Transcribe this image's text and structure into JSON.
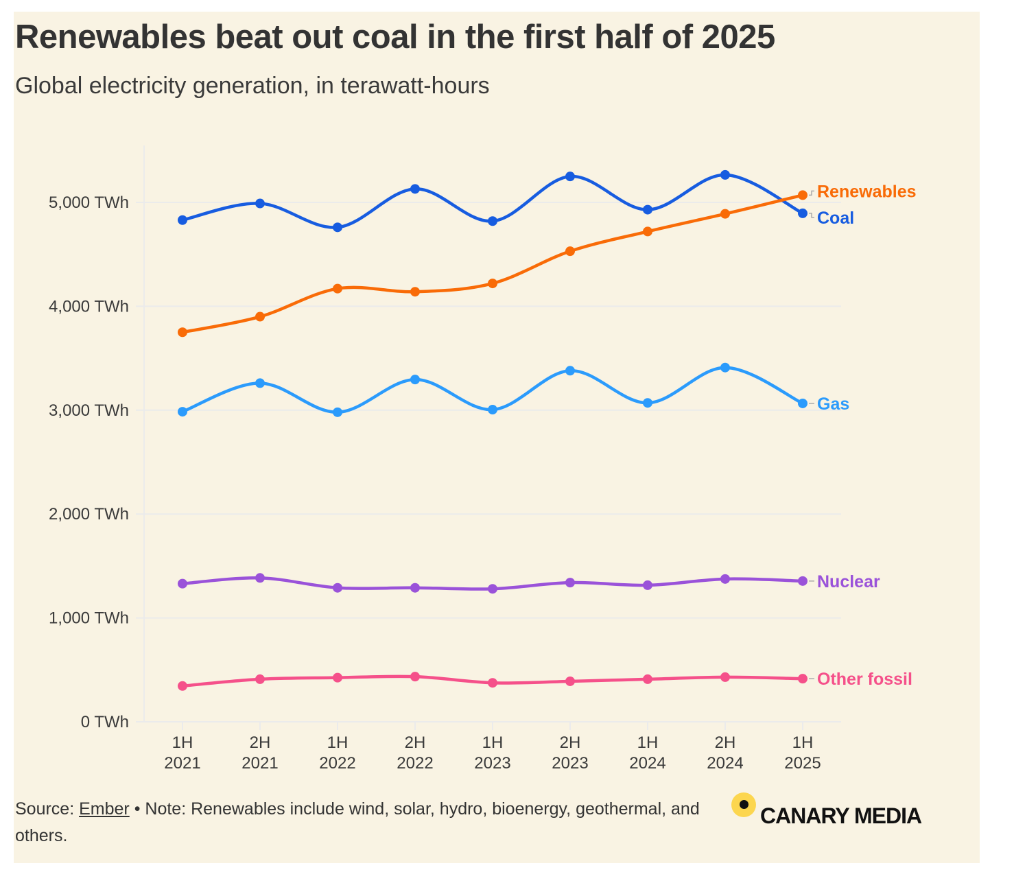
{
  "header": {
    "title": "Renewables beat out coal in the first half of 2025",
    "subtitle": "Global electricity generation, in terawatt-hours"
  },
  "footer": {
    "source_prefix": "Source: ",
    "source_link": "Ember",
    "note": " • Note: Renewables include wind, solar, hydro, bioenergy, geothermal, and others."
  },
  "logo": {
    "text": "CANARY MEDIA",
    "icon": "canary-dot-icon",
    "accent": "#fcd64f"
  },
  "chart_data": {
    "type": "line",
    "title": "Renewables beat out coal in the first half of 2025",
    "subtitle": "Global electricity generation, in terawatt-hours",
    "xlabel": "",
    "ylabel": "",
    "x": [
      "1H 2021",
      "2H 2021",
      "1H 2022",
      "2H 2022",
      "1H 2023",
      "2H 2023",
      "1H 2024",
      "2H 2024",
      "1H 2025"
    ],
    "x_tick_labels": [
      [
        "1H",
        "2021"
      ],
      [
        "2H",
        "2021"
      ],
      [
        "1H",
        "2022"
      ],
      [
        "2H",
        "2022"
      ],
      [
        "1H",
        "2023"
      ],
      [
        "2H",
        "2023"
      ],
      [
        "1H",
        "2024"
      ],
      [
        "2H",
        "2024"
      ],
      [
        "1H",
        "2025"
      ]
    ],
    "y_ticks": [
      0,
      1000,
      2000,
      3000,
      4000,
      5000
    ],
    "y_tick_labels": [
      "0 TWh",
      "1,000 TWh",
      "2,000 TWh",
      "3,000 TWh",
      "4,000 TWh",
      "5,000 TWh"
    ],
    "ylim": [
      0,
      5500
    ],
    "grid": true,
    "legend": "direct labels at right end of lines",
    "series": [
      {
        "name": "Renewables",
        "color": "#f96b07",
        "values": [
          3750,
          3900,
          4170,
          4140,
          4220,
          4530,
          4720,
          4890,
          5070
        ]
      },
      {
        "name": "Coal",
        "color": "#175ce0",
        "values": [
          4830,
          4990,
          4760,
          5130,
          4820,
          5250,
          4930,
          5265,
          4895
        ]
      },
      {
        "name": "Gas",
        "color": "#2b9bfc",
        "values": [
          2985,
          3260,
          2980,
          3295,
          3005,
          3380,
          3070,
          3410,
          3065
        ]
      },
      {
        "name": "Nuclear",
        "color": "#9a52d9",
        "values": [
          1330,
          1385,
          1290,
          1290,
          1280,
          1340,
          1315,
          1375,
          1355
        ]
      },
      {
        "name": "Other fossil",
        "color": "#f5508a",
        "values": [
          345,
          410,
          425,
          435,
          375,
          390,
          410,
          430,
          415
        ]
      }
    ]
  }
}
